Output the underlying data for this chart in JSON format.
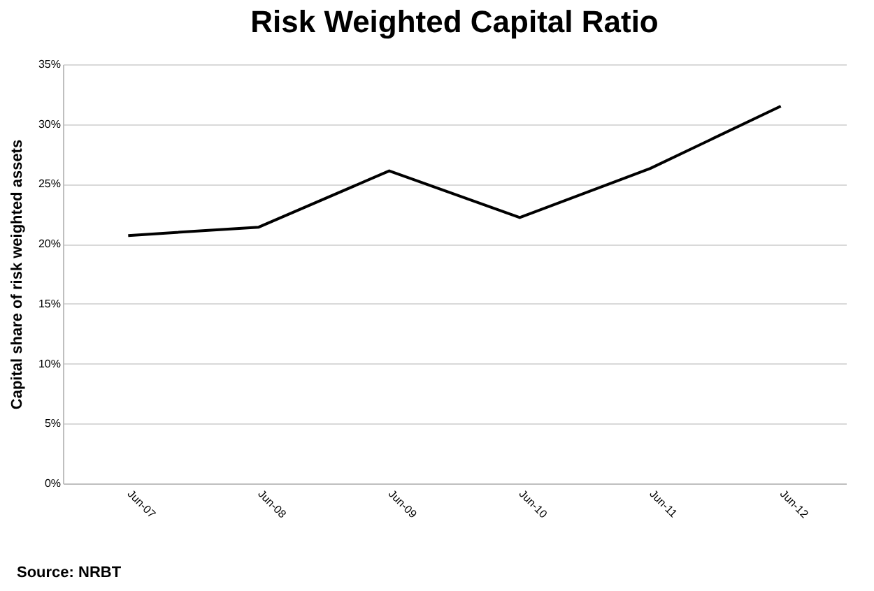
{
  "chart_data": {
    "type": "line",
    "title": "Risk Weighted Capital Ratio",
    "ylabel": "Capital share of risk weighted assets",
    "categories": [
      "Jun-07",
      "Jun-08",
      "Jun-09",
      "Jun-10",
      "Jun-11",
      "Jun-12"
    ],
    "series": [
      {
        "color": "#000000",
        "values": [
          20.7,
          21.4,
          26.1,
          22.2,
          26.3,
          31.5
        ]
      }
    ],
    "ylim": [
      0,
      35
    ],
    "yticks": [
      {
        "value": 0,
        "label": "0%"
      },
      {
        "value": 5,
        "label": "5%"
      },
      {
        "value": 10,
        "label": "10%"
      },
      {
        "value": 15,
        "label": "15%"
      },
      {
        "value": 20,
        "label": "20%"
      },
      {
        "value": 25,
        "label": "25%"
      },
      {
        "value": 30,
        "label": "30%"
      },
      {
        "value": 35,
        "label": "35%"
      }
    ],
    "grid": "y",
    "marker": "none",
    "line_style": "solid",
    "annotations": [
      "Source: NRBT"
    ]
  }
}
